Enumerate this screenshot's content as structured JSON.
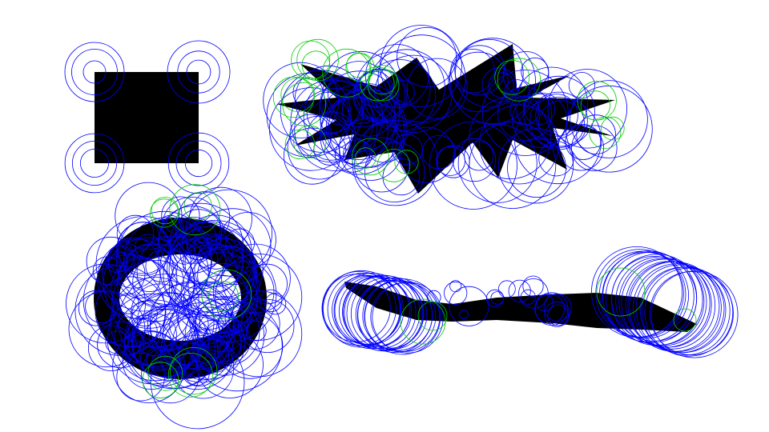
{
  "colors": {
    "background": "#ffffff",
    "shape_fill": "#000000",
    "primary_circle": "#0000ff",
    "secondary_circle": "#00cc00"
  },
  "figures": [
    {
      "name": "square-figure",
      "shape": "square",
      "primary_circles": 12,
      "secondary_circles": 0
    },
    {
      "name": "star-figure",
      "shape": "star",
      "primary_circles": 90,
      "secondary_circles": 24
    },
    {
      "name": "ring-figure",
      "shape": "ring",
      "primary_circles": 130,
      "secondary_circles": 10
    },
    {
      "name": "bar-figure",
      "shape": "bar",
      "primary_circles": 60,
      "secondary_circles": 4
    }
  ]
}
